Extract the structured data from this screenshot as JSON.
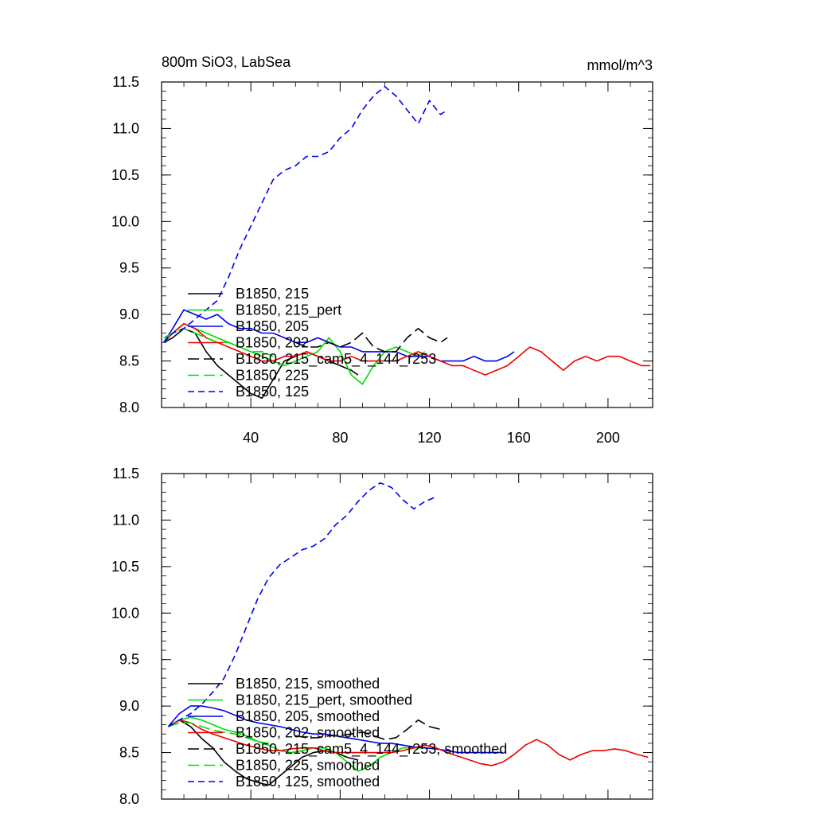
{
  "chart_data": [
    {
      "type": "line",
      "title": "800m SiO3, LabSea",
      "units_label": "mmol/m^3",
      "xlim": [
        0,
        220
      ],
      "ylim": [
        8.0,
        11.5
      ],
      "yticks": [
        "8.0",
        "8.5",
        "9.0",
        "9.5",
        "10.0",
        "10.5",
        "11.0",
        "11.5"
      ],
      "xticks": [
        "40",
        "80",
        "120",
        "160",
        "200"
      ],
      "legend_position": "lower-left",
      "series": [
        {
          "name": "B1850, 215",
          "color": "#000000",
          "dash": "solid",
          "x": [
            1,
            5,
            10,
            15,
            20,
            25,
            30,
            35,
            40,
            45,
            50,
            55,
            60,
            65,
            70,
            75,
            80,
            85,
            88
          ],
          "y": [
            8.7,
            8.75,
            8.85,
            8.8,
            8.6,
            8.45,
            8.35,
            8.25,
            8.15,
            8.1,
            8.3,
            8.5,
            8.55,
            8.6,
            8.55,
            8.5,
            8.45,
            8.4,
            8.35
          ]
        },
        {
          "name": "B1850, 215_pert",
          "color": "#00dd00",
          "dash": "solid",
          "x": [
            1,
            5,
            10,
            15,
            20,
            25,
            30,
            35,
            40,
            45,
            50,
            55,
            60,
            65,
            70,
            75,
            80,
            85,
            90,
            95,
            100,
            105,
            110,
            115,
            118
          ],
          "y": [
            8.7,
            8.8,
            8.9,
            8.85,
            8.8,
            8.75,
            8.7,
            8.65,
            8.6,
            8.55,
            8.5,
            8.45,
            8.5,
            8.55,
            8.6,
            8.75,
            8.6,
            8.35,
            8.25,
            8.45,
            8.6,
            8.65,
            8.6,
            8.55,
            8.6
          ]
        },
        {
          "name": "B1850, 205",
          "color": "#0000ee",
          "dash": "solid",
          "x": [
            1,
            5,
            10,
            15,
            20,
            25,
            30,
            35,
            40,
            45,
            50,
            55,
            60,
            65,
            70,
            75,
            80,
            85,
            90,
            95,
            100,
            105,
            110,
            115,
            120,
            125,
            130,
            135,
            140,
            145,
            150,
            155,
            158
          ],
          "y": [
            8.7,
            8.85,
            9.05,
            9.0,
            8.95,
            9.0,
            8.9,
            8.85,
            8.85,
            8.8,
            8.8,
            8.75,
            8.7,
            8.7,
            8.75,
            8.7,
            8.65,
            8.65,
            8.6,
            8.6,
            8.6,
            8.6,
            8.55,
            8.55,
            8.55,
            8.5,
            8.5,
            8.5,
            8.55,
            8.5,
            8.5,
            8.55,
            8.6
          ]
        },
        {
          "name": "B1850, 202",
          "color": "#ee0000",
          "dash": "solid",
          "x": [
            1,
            5,
            10,
            15,
            20,
            25,
            30,
            35,
            40,
            45,
            50,
            55,
            60,
            65,
            70,
            75,
            80,
            85,
            90,
            95,
            100,
            105,
            110,
            115,
            120,
            125,
            130,
            135,
            140,
            145,
            150,
            155,
            160,
            165,
            170,
            175,
            180,
            185,
            190,
            195,
            200,
            205,
            210,
            215,
            219
          ],
          "y": [
            8.7,
            8.8,
            8.9,
            8.85,
            8.75,
            8.7,
            8.65,
            8.6,
            8.55,
            8.5,
            8.5,
            8.55,
            8.55,
            8.6,
            8.55,
            8.5,
            8.5,
            8.55,
            8.5,
            8.5,
            8.5,
            8.5,
            8.55,
            8.6,
            8.55,
            8.5,
            8.45,
            8.45,
            8.4,
            8.35,
            8.4,
            8.45,
            8.55,
            8.65,
            8.6,
            8.5,
            8.4,
            8.5,
            8.55,
            8.5,
            8.55,
            8.55,
            8.5,
            8.45,
            8.45
          ]
        },
        {
          "name": "B1850, 215_cam5_4_144_r253",
          "color": "#000000",
          "dash": "long",
          "x": [
            60,
            65,
            70,
            75,
            80,
            85,
            90,
            95,
            100,
            105,
            110,
            115,
            120,
            125,
            128
          ],
          "y": [
            8.7,
            8.65,
            8.65,
            8.7,
            8.65,
            8.7,
            8.8,
            8.65,
            8.6,
            8.6,
            8.75,
            8.85,
            8.75,
            8.7,
            8.75
          ]
        },
        {
          "name": "B1850, 225",
          "color": "#00dd00",
          "dash": "long",
          "x": [
            1,
            5,
            10,
            15,
            20,
            25,
            30,
            35,
            40,
            45,
            50
          ],
          "y": [
            8.75,
            8.8,
            8.85,
            8.8,
            8.75,
            8.7,
            8.7,
            8.65,
            8.6,
            8.6,
            8.55
          ]
        },
        {
          "name": "B1850, 125",
          "color": "#0000ee",
          "dash": "dash",
          "x": [
            1,
            5,
            10,
            15,
            20,
            25,
            30,
            35,
            40,
            45,
            50,
            55,
            60,
            65,
            70,
            75,
            80,
            85,
            90,
            95,
            100,
            105,
            110,
            115,
            120,
            125,
            128
          ],
          "y": [
            8.7,
            8.8,
            8.85,
            8.95,
            9.05,
            9.15,
            9.4,
            9.7,
            9.95,
            10.2,
            10.45,
            10.55,
            10.6,
            10.7,
            10.7,
            10.75,
            10.9,
            11.0,
            11.2,
            11.35,
            11.45,
            11.35,
            11.2,
            11.05,
            11.3,
            11.15,
            11.2
          ]
        }
      ]
    },
    {
      "type": "line",
      "xlim": [
        0,
        220
      ],
      "ylim": [
        8.0,
        11.5
      ],
      "yticks": [
        "8.0",
        "8.5",
        "9.0",
        "9.5",
        "10.0",
        "10.5",
        "11.0",
        "11.5"
      ],
      "legend_position": "lower-left",
      "series": [
        {
          "name": "B1850, 215, smoothed",
          "color": "#000000",
          "dash": "solid",
          "x": [
            3,
            8,
            13,
            18,
            23,
            28,
            33,
            38,
            43,
            48,
            53,
            58,
            63,
            68,
            73,
            78,
            83,
            88
          ],
          "y": [
            8.78,
            8.85,
            8.78,
            8.65,
            8.55,
            8.4,
            8.3,
            8.22,
            8.18,
            8.15,
            8.25,
            8.35,
            8.45,
            8.5,
            8.52,
            8.5,
            8.45,
            8.42
          ]
        },
        {
          "name": "B1850, 215_pert, smoothed",
          "color": "#00dd00",
          "dash": "solid",
          "x": [
            3,
            8,
            13,
            18,
            23,
            28,
            33,
            38,
            43,
            48,
            53,
            58,
            63,
            68,
            73,
            78,
            83,
            88,
            93,
            98,
            103,
            108,
            113,
            118
          ],
          "y": [
            8.78,
            8.85,
            8.88,
            8.85,
            8.8,
            8.75,
            8.72,
            8.68,
            8.62,
            8.58,
            8.52,
            8.5,
            8.52,
            8.55,
            8.55,
            8.5,
            8.4,
            8.3,
            8.35,
            8.45,
            8.5,
            8.55,
            8.55,
            8.55
          ]
        },
        {
          "name": "B1850, 205, smoothed",
          "color": "#0000ee",
          "dash": "solid",
          "x": [
            3,
            8,
            13,
            18,
            23,
            28,
            33,
            38,
            43,
            48,
            53,
            58,
            63,
            68,
            73,
            78,
            83,
            88,
            93,
            98,
            103,
            108,
            113,
            118,
            123,
            128,
            133,
            138,
            143,
            148,
            153
          ],
          "y": [
            8.78,
            8.92,
            9.0,
            9.0,
            8.98,
            8.95,
            8.9,
            8.85,
            8.82,
            8.8,
            8.78,
            8.75,
            8.72,
            8.7,
            8.7,
            8.68,
            8.66,
            8.64,
            8.62,
            8.6,
            8.6,
            8.58,
            8.56,
            8.55,
            8.54,
            8.52,
            8.5,
            8.5,
            8.5,
            8.5,
            8.5
          ]
        },
        {
          "name": "B1850, 202, smoothed",
          "color": "#ee0000",
          "dash": "solid",
          "x": [
            3,
            8,
            13,
            18,
            23,
            28,
            33,
            38,
            43,
            48,
            53,
            58,
            63,
            68,
            73,
            78,
            83,
            88,
            93,
            98,
            103,
            108,
            113,
            118,
            123,
            128,
            133,
            138,
            143,
            148,
            153,
            158,
            163,
            168,
            173,
            178,
            183,
            188,
            193,
            198,
            203,
            208,
            213,
            218
          ],
          "y": [
            8.78,
            8.85,
            8.82,
            8.75,
            8.7,
            8.66,
            8.62,
            8.58,
            8.55,
            8.52,
            8.52,
            8.54,
            8.55,
            8.55,
            8.52,
            8.5,
            8.5,
            8.5,
            8.5,
            8.5,
            8.5,
            8.52,
            8.55,
            8.58,
            8.55,
            8.5,
            8.46,
            8.42,
            8.38,
            8.36,
            8.4,
            8.48,
            8.58,
            8.64,
            8.58,
            8.48,
            8.42,
            8.48,
            8.52,
            8.52,
            8.54,
            8.52,
            8.48,
            8.45
          ]
        },
        {
          "name": "B1850, 215_cam5_4_144_r253, smoothed",
          "color": "#000000",
          "dash": "long",
          "x": [
            60,
            65,
            70,
            75,
            80,
            85,
            90,
            95,
            100,
            105,
            110,
            115,
            120,
            125
          ],
          "y": [
            8.68,
            8.66,
            8.66,
            8.68,
            8.68,
            8.7,
            8.72,
            8.68,
            8.64,
            8.66,
            8.75,
            8.85,
            8.78,
            8.75
          ]
        },
        {
          "name": "B1850, 225, smoothed",
          "color": "#00dd00",
          "dash": "long",
          "x": [
            3,
            8,
            13,
            18,
            23,
            28,
            33,
            38,
            43,
            48
          ],
          "y": [
            8.78,
            8.82,
            8.82,
            8.78,
            8.74,
            8.72,
            8.7,
            8.66,
            8.62,
            8.6
          ]
        },
        {
          "name": "B1850, 125, smoothed",
          "color": "#0000ee",
          "dash": "dash",
          "x": [
            3,
            8,
            13,
            18,
            23,
            28,
            33,
            38,
            43,
            48,
            53,
            58,
            63,
            68,
            73,
            78,
            83,
            88,
            93,
            98,
            103,
            108,
            113,
            118,
            123
          ],
          "y": [
            8.78,
            8.85,
            8.92,
            9.02,
            9.15,
            9.3,
            9.55,
            9.85,
            10.15,
            10.38,
            10.52,
            10.6,
            10.68,
            10.72,
            10.8,
            10.95,
            11.05,
            11.2,
            11.32,
            11.4,
            11.35,
            11.22,
            11.12,
            11.2,
            11.25
          ]
        }
      ]
    }
  ]
}
